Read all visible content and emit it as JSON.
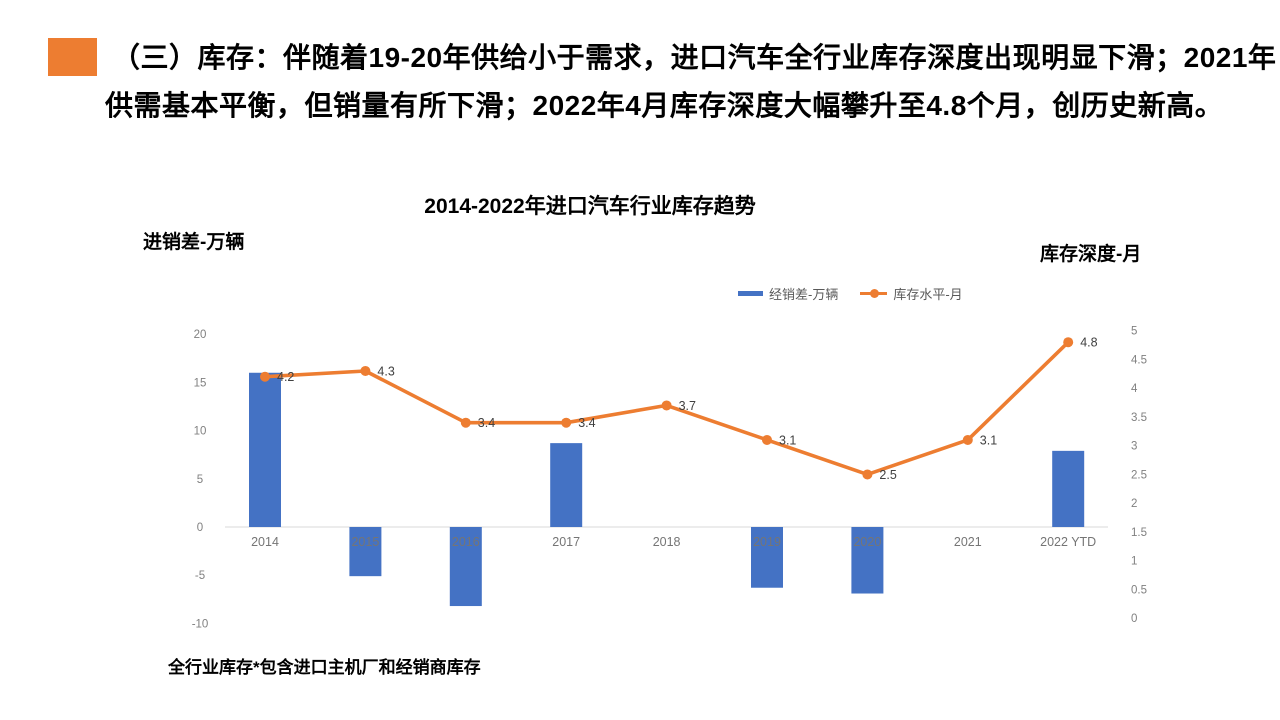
{
  "slide": {
    "accent_color": "#ED7D31",
    "title_line1": "（三）库存：伴随着19-20年供给小于需求，进口汽车全行业库存深度出现明显下滑；2021年",
    "title_line2": "供需基本平衡，但销量有所下滑；2022年4月库存深度大幅攀升至4.8个月，创历史新高。",
    "footnote": "全行业库存*包含进口主机厂和经销商库存"
  },
  "chart_data": {
    "type": "combo-bar-line",
    "title": "2014-2022年进口汽车行业库存趋势",
    "left_axis_label": "进销差-万辆",
    "right_axis_label": "库存深度-月",
    "categories": [
      "2014",
      "2015",
      "2016",
      "2017",
      "2018",
      "2019",
      "2020",
      "2021",
      "2022 YTD"
    ],
    "series": [
      {
        "name": "经销差-万辆",
        "chart_type": "bar",
        "axis": "left",
        "color": "#4472C4",
        "values": [
          16,
          -5.1,
          -8.2,
          8.7,
          0,
          -6.3,
          -6.9,
          0,
          7.9
        ]
      },
      {
        "name": "库存水平-月",
        "chart_type": "line",
        "axis": "right",
        "color": "#ED7D31",
        "values": [
          4.2,
          4.3,
          3.4,
          3.4,
          3.7,
          3.1,
          2.5,
          3.1,
          4.8
        ],
        "point_labels": [
          "4.2",
          "4.3",
          "3.4",
          "3.4",
          "3.7",
          "3.1",
          "2.5",
          "3.1",
          "4.8"
        ]
      }
    ],
    "left_axis": {
      "min": -10,
      "max": 20,
      "step": 5,
      "ticks": [
        "20",
        "15",
        "10",
        "5",
        "0",
        "-5",
        "-10"
      ]
    },
    "right_axis": {
      "min": 0,
      "max": 5,
      "step": 0.5,
      "ticks": [
        "5",
        "4.5",
        "4",
        "3.5",
        "3",
        "2.5",
        "2",
        "1.5",
        "1",
        "0.5",
        "0"
      ]
    },
    "grid": "off",
    "legend_position": "top-right",
    "colors": {
      "axis_line": "#D9D9D9",
      "tick_label": "#808080",
      "category_label": "#757575",
      "data_label": "#404040"
    }
  }
}
